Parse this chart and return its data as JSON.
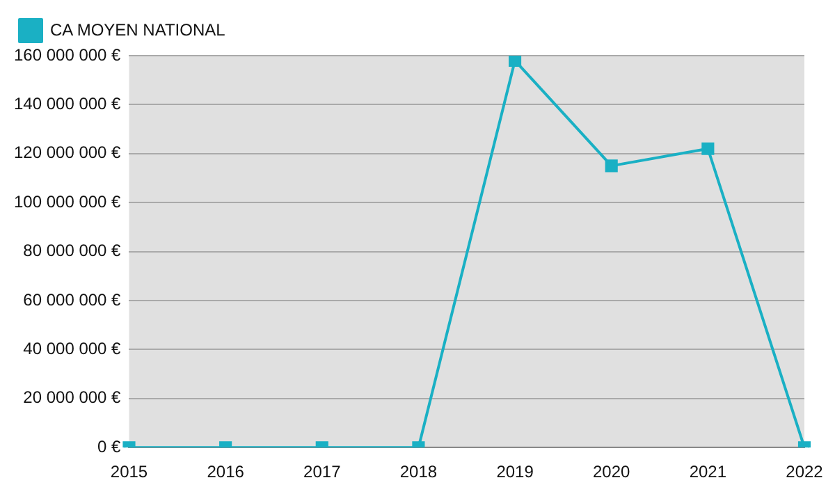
{
  "chart_data": {
    "type": "line",
    "categories": [
      "2015",
      "2016",
      "2017",
      "2018",
      "2019",
      "2020",
      "2021",
      "2022"
    ],
    "series": [
      {
        "name": "CA MOYEN NATIONAL",
        "color": "#1ab0c4",
        "values": [
          0,
          0,
          0,
          0,
          158000000,
          115000000,
          122000000,
          0
        ]
      }
    ],
    "ylim": [
      0,
      160000000
    ],
    "yticks": [
      {
        "value": 0,
        "label": "0 €"
      },
      {
        "value": 20000000,
        "label": "20 000 000 €"
      },
      {
        "value": 40000000,
        "label": "40 000 000 €"
      },
      {
        "value": 60000000,
        "label": "60 000 000 €"
      },
      {
        "value": 80000000,
        "label": "80 000 000 €"
      },
      {
        "value": 100000000,
        "label": "100 000 000 €"
      },
      {
        "value": 120000000,
        "label": "120 000 000 €"
      },
      {
        "value": 140000000,
        "label": "140 000 000 €"
      },
      {
        "value": 160000000,
        "label": "160 000 000 €"
      }
    ],
    "grid": "y",
    "legend": "top left",
    "marker": "square",
    "line_style": "solid"
  }
}
